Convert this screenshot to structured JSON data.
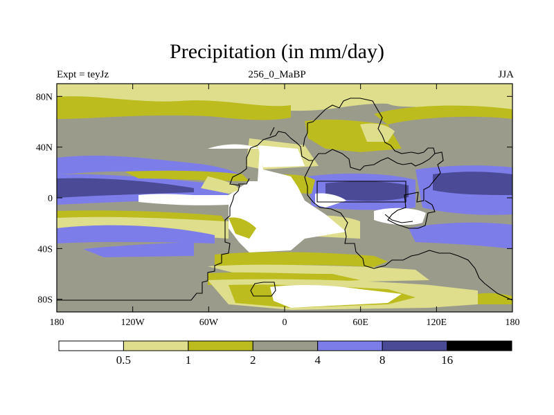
{
  "header": {
    "title": "Precipitation (in mm/day)",
    "left": "Expt = teyJz",
    "center": "256_0_MaBP",
    "right": "JJA"
  },
  "colors": {
    "bin0": "#ffffff",
    "bin1": "#dede8c",
    "bin2": "#bcbc1e",
    "bin3": "#9b9b8c",
    "bin4": "#7d7dea",
    "bin5": "#4a4a96",
    "bin6": "#000000",
    "coast": "#000000"
  },
  "chart_data": {
    "type": "heatmap",
    "title": "Precipitation (in mm/day)",
    "subtitle_left": "Expt = teyJz",
    "subtitle_center": "256_0_MaBP",
    "subtitle_right": "JJA",
    "x_ticks": [
      "180",
      "120W",
      "60W",
      "0",
      "60E",
      "120E",
      "180"
    ],
    "x_tick_values": [
      -180,
      -120,
      -60,
      0,
      60,
      120,
      180
    ],
    "y_ticks": [
      "80N",
      "40N",
      "0",
      "40S",
      "80S"
    ],
    "y_tick_values": [
      80,
      40,
      0,
      -40,
      -80
    ],
    "xlim": [
      -180,
      180
    ],
    "ylim": [
      -90,
      90
    ],
    "colorbar": {
      "levels": [
        "0.5",
        "1",
        "2",
        "4",
        "8",
        "16"
      ],
      "level_values": [
        0.5,
        1,
        2,
        4,
        8,
        16
      ],
      "bins": [
        "<0.5",
        "0.5-1",
        "1-2",
        "2-4",
        "4-8",
        "8-16",
        ">16"
      ]
    }
  }
}
